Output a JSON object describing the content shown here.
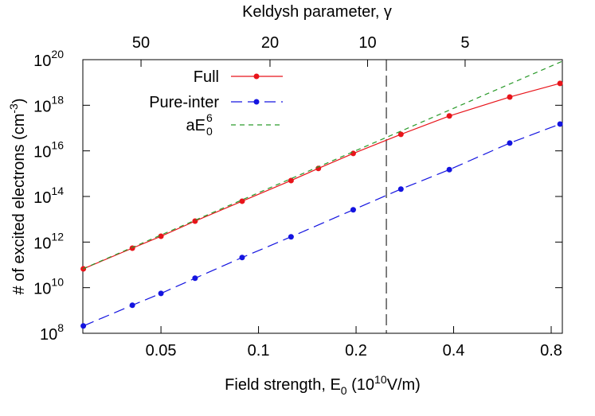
{
  "chart_data": {
    "type": "line",
    "title": "Keldysh parameter, γ",
    "xlabel": [
      "Field strength, E",
      "0",
      " (10",
      "10",
      "V/m)"
    ],
    "ylabel": [
      "# of excited electrons (cm",
      "-3",
      ")"
    ],
    "xscale": "log",
    "yscale": "log",
    "xlim": [
      0.0287,
      0.866
    ],
    "xticks": [
      0.05,
      0.1,
      0.2,
      0.4,
      0.8
    ],
    "x2lim": [
      75.6,
      2.506
    ],
    "x2ticks": [
      50,
      20,
      10,
      5
    ],
    "ylim": [
      100000000.0,
      1e+20
    ],
    "yticks": [
      {
        "value": 100000000.0,
        "label": [
          "10",
          "8"
        ]
      },
      {
        "value": 10000000000.0,
        "label": [
          "10",
          "10"
        ]
      },
      {
        "value": 1000000000000.0,
        "label": [
          "10",
          "12"
        ]
      },
      {
        "value": 100000000000000.0,
        "label": [
          "10",
          "14"
        ]
      },
      {
        "value": 1e+16,
        "label": [
          "10",
          "16"
        ]
      },
      {
        "value": 1e+18,
        "label": [
          "10",
          "18"
        ]
      },
      {
        "value": 1e+20,
        "label": [
          "10",
          "20"
        ]
      }
    ],
    "vline": {
      "x": 0.248,
      "color": "#000000"
    },
    "series": [
      {
        "name": [
          "Full"
        ],
        "color": "#e8141a",
        "linestyle": "solid",
        "marker": true,
        "x": [
          0.0288,
          0.0408,
          0.05,
          0.0637,
          0.089,
          0.126,
          0.153,
          0.196,
          0.275,
          0.388,
          0.596,
          0.852
        ],
        "values": [
          67000000000.0,
          540000000000.0,
          1800000000000.0,
          8300000000000.0,
          62000000000000.0,
          500000000000000.0,
          1700000000000000.0,
          7700000000000000.0,
          5.3e+16,
          3.4e+17,
          2.3e+18,
          9.1e+18
        ]
      },
      {
        "name": [
          "Pure-inter"
        ],
        "color": "#1414e0",
        "linestyle": "long-dash",
        "marker": true,
        "x": [
          0.0288,
          0.0408,
          0.05,
          0.0637,
          0.089,
          0.126,
          0.196,
          0.275,
          0.388,
          0.596,
          0.852
        ],
        "values": [
          210000000.0,
          1700000000.0,
          5600000000.0,
          26000000000.0,
          210000000000.0,
          1700000000000.0,
          26000000000000.0,
          210000000000000.0,
          1500000000000000.0,
          2.2e+16,
          1.5e+17
        ]
      },
      {
        "name": [
          "aE",
          "0",
          "6"
        ],
        "color": "#2a9a2a",
        "linestyle": "dash",
        "marker": false,
        "x": [
          0.0287,
          0.866
        ],
        "values": [
          67000000000.0,
          8.5e+19
        ]
      }
    ]
  }
}
